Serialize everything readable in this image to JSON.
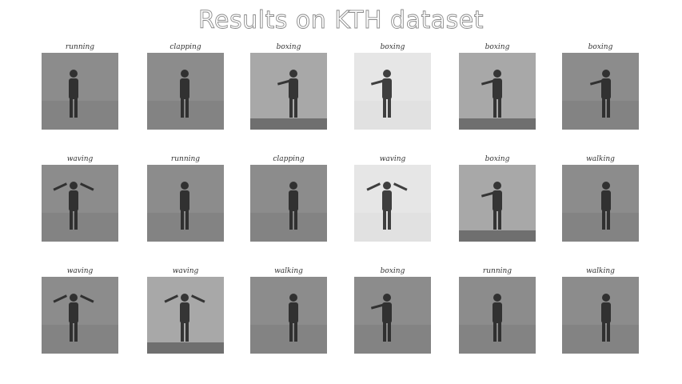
{
  "title": "Results on KTH dataset",
  "rows": [
    [
      {
        "label": "running",
        "tone": "mid"
      },
      {
        "label": "clapping",
        "tone": "mid"
      },
      {
        "label": "boxing",
        "tone": "wall"
      },
      {
        "label": "boxing",
        "tone": "light"
      },
      {
        "label": "boxing",
        "tone": "wall"
      },
      {
        "label": "boxing",
        "tone": "mid"
      }
    ],
    [
      {
        "label": "waving",
        "tone": "mid"
      },
      {
        "label": "running",
        "tone": "mid"
      },
      {
        "label": "clapping",
        "tone": "mid"
      },
      {
        "label": "waving",
        "tone": "light"
      },
      {
        "label": "boxing",
        "tone": "wall"
      },
      {
        "label": "walking",
        "tone": "mid"
      }
    ],
    [
      {
        "label": "waving",
        "tone": "mid"
      },
      {
        "label": "waving",
        "tone": "wall"
      },
      {
        "label": "walking",
        "tone": "mid"
      },
      {
        "label": "boxing",
        "tone": "mid"
      },
      {
        "label": "running",
        "tone": "mid"
      },
      {
        "label": "walking",
        "tone": "mid"
      }
    ]
  ]
}
